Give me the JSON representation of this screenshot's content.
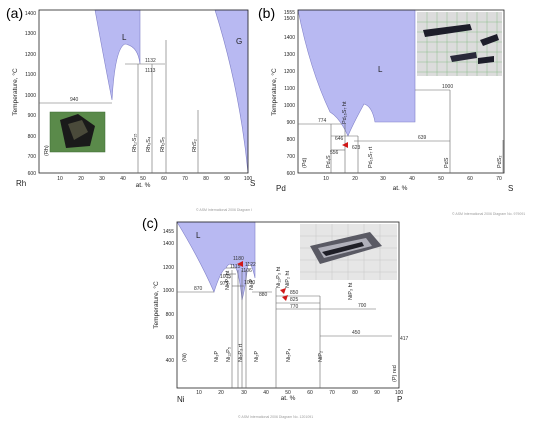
{
  "panels": [
    {
      "id": "a",
      "label": "(a)",
      "ylabel": "Temperature, °C",
      "xlabel": "at. %",
      "left_element": "Rh",
      "right_element": "S",
      "yticks": [
        "1400",
        "1300",
        "1200",
        "1100",
        "1000",
        "900",
        "800",
        "700",
        "600"
      ],
      "xticks": [
        "10",
        "20",
        "30",
        "40",
        "50",
        "60",
        "70",
        "80",
        "90",
        "100"
      ],
      "temps": [
        "940",
        "1132",
        "1113"
      ],
      "phases": [
        "Rh₁₇S₁₅",
        "Rh₃S₄",
        "Rh₂S₅",
        "RhS₂"
      ],
      "region_labels": [
        "L",
        "G"
      ],
      "side_label": "(Rh)"
    },
    {
      "id": "b",
      "label": "(b)",
      "ylabel": "Temperature, °C",
      "xlabel": "at. %",
      "left_element": "Pd",
      "right_element": "S",
      "yticks": [
        "1555",
        "1500",
        "1400",
        "1300",
        "1200",
        "1100",
        "1000",
        "900",
        "800",
        "700",
        "600",
        "500"
      ],
      "xticks": [
        "10",
        "20",
        "30",
        "40",
        "50",
        "60",
        "70"
      ],
      "temps": [
        "774",
        "646",
        "556",
        "623",
        "639",
        "1000"
      ],
      "phases": [
        "Pd₄S",
        "Pd₁₆S₇ ht",
        "Pd₁₆S₇ rt",
        "PdS",
        "PdS₂"
      ],
      "region_labels": [
        "L"
      ],
      "side_label": "(Pd)"
    },
    {
      "id": "c",
      "label": "(c)",
      "ylabel": "Temperature, °C",
      "xlabel": "at. %",
      "left_element": "Ni",
      "right_element": "P",
      "yticks": [
        "1455",
        "1400",
        "1200",
        "1000",
        "800",
        "600",
        "400"
      ],
      "xticks": [
        "10",
        "20",
        "30",
        "40",
        "50",
        "60",
        "70",
        "80",
        "90",
        "100"
      ],
      "temps": [
        "870",
        "1180",
        "1115",
        "1106",
        "1122",
        "1005",
        "975",
        "1000",
        "880",
        "850",
        "825",
        "770",
        "700",
        "450",
        "417"
      ],
      "phases": [
        "Ni₃P",
        "Ni₅P₂ ht",
        "Ni₅P₂ rt",
        "Ni₁₂P₅",
        "Ni₂P",
        "Ni₅P₄",
        "Ni₁₂P₃ ht",
        "NiP₂ ht",
        "NiP₂",
        "NiP₃",
        "NiP₃ ht",
        "(P) red"
      ],
      "region_labels": [
        "L"
      ],
      "side_label": "(Ni)"
    }
  ],
  "footers": [
    "© ASM International 2006      Diagram I",
    "© ASM International 2006      Diagram No. 979091",
    "© ASM International 2006      Diagram No. 1201091"
  ],
  "colors": {
    "liquid": "#b8b9f2",
    "marker": "#d01818"
  }
}
